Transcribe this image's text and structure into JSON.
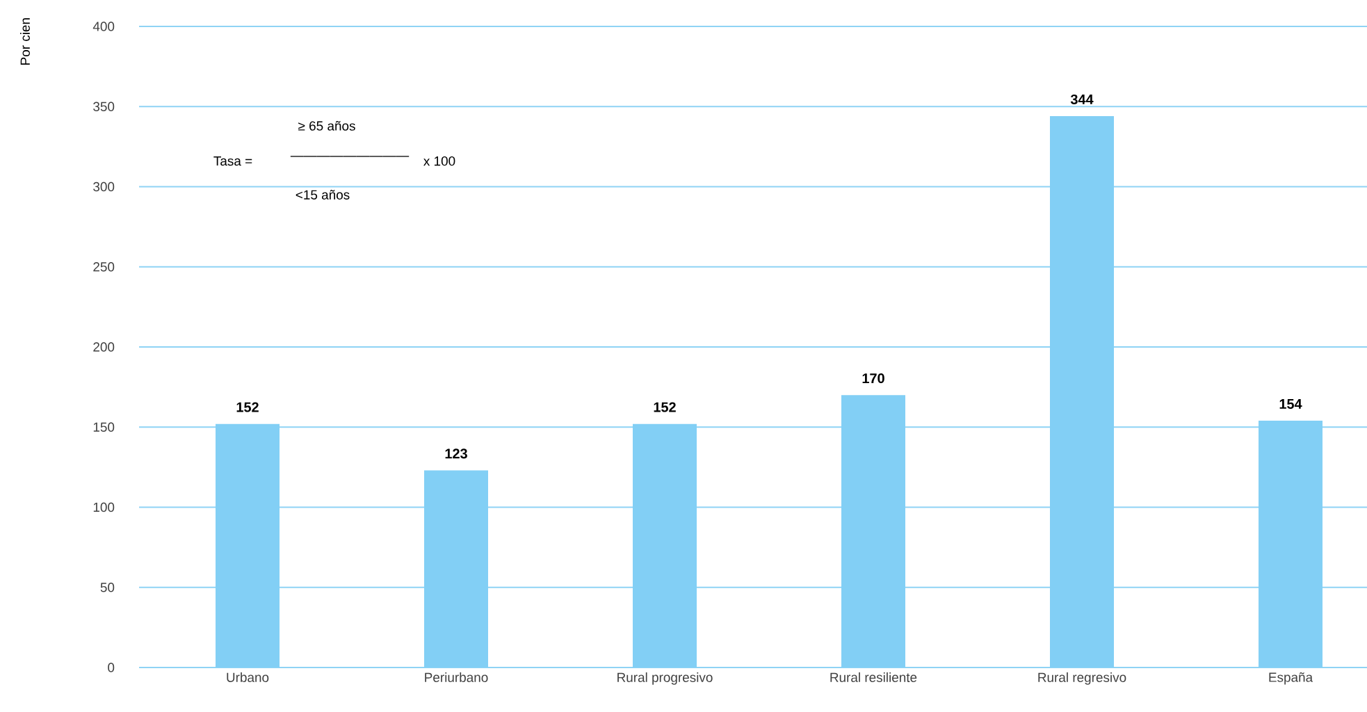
{
  "chart_data": {
    "type": "bar",
    "ylabel": "Por cien",
    "categories": [
      "Urbano",
      "Periurbano",
      "Rural progresivo",
      "Rural resiliente",
      "Rural regresivo",
      "España"
    ],
    "values": [
      152,
      123,
      152,
      170,
      344,
      154
    ],
    "color": "#82cff5",
    "ylim": [
      0,
      400
    ],
    "yticks": [
      0,
      50,
      100,
      150,
      200,
      250,
      300,
      350,
      400
    ],
    "grid": "y",
    "data_labels": true,
    "annotations": [
      "Tasa =",
      "≥ 65 años",
      "<15 años",
      "—————————",
      "x 100"
    ]
  }
}
